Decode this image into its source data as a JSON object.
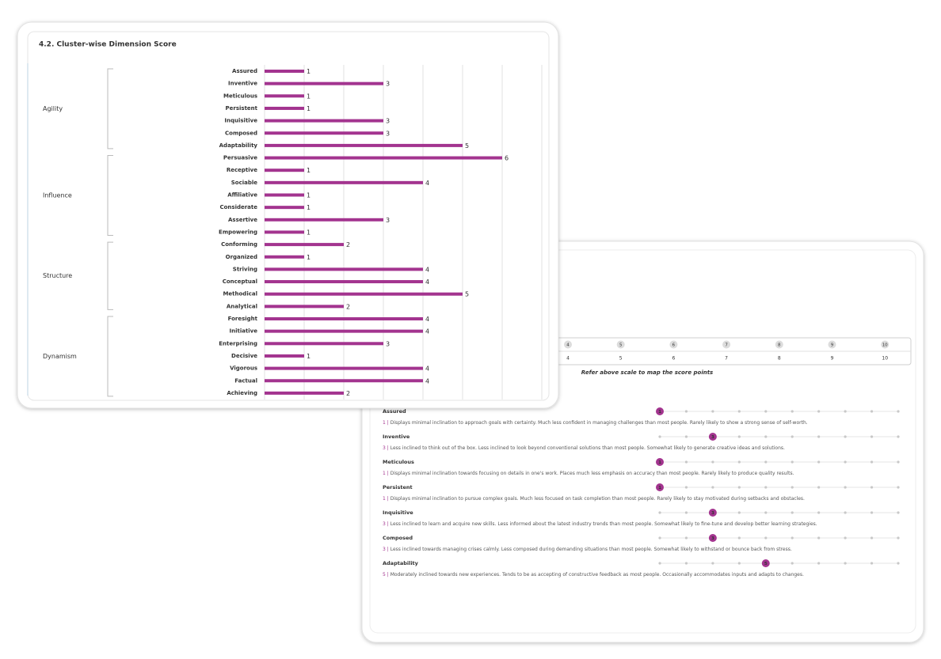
{
  "chart_data": {
    "type": "bar",
    "orientation": "horizontal",
    "title": "4.2. Cluster-wise Dimension Score",
    "color": "#a3348f",
    "xlim": [
      0,
      7
    ],
    "xticks": [
      0,
      1,
      2,
      3,
      4,
      5,
      6,
      7
    ],
    "tick_labels": false,
    "grid": true,
    "groups": [
      {
        "name": "Agility",
        "categories": [
          "Assured",
          "Inventive",
          "Meticulous",
          "Persistent",
          "Inquisitive",
          "Composed",
          "Adaptability"
        ],
        "values": [
          1,
          3,
          1,
          1,
          3,
          3,
          5
        ]
      },
      {
        "name": "Influence",
        "categories": [
          "Persuasive",
          "Receptive",
          "Sociable",
          "Affiliative",
          "Considerate",
          "Assertive",
          "Empowering"
        ],
        "values": [
          6,
          1,
          4,
          1,
          1,
          3,
          1
        ]
      },
      {
        "name": "Structure",
        "categories": [
          "Conforming",
          "Organized",
          "Striving",
          "Conceptual",
          "Methodical",
          "Analytical"
        ],
        "values": [
          2,
          1,
          4,
          4,
          5,
          2
        ]
      },
      {
        "name": "Dynamism",
        "categories": [
          "Foresight",
          "Initiative",
          "Enterprising",
          "Decisive",
          "Vigorous",
          "Factual",
          "Achieving"
        ],
        "values": [
          4,
          4,
          3,
          1,
          4,
          4,
          2
        ]
      }
    ]
  },
  "report": {
    "scale": [
      4,
      5,
      6,
      7,
      8,
      9,
      10
    ],
    "scale_note": "Refer above scale to map the score points",
    "score_range": [
      1,
      10
    ],
    "separator": "|",
    "items": [
      {
        "name": "Assured",
        "score": 1,
        "description": "Displays minimal inclination to approach goals with certainty. Much less confident in managing challenges than most people. Rarely likely to show a strong sense of self-worth."
      },
      {
        "name": "Inventive",
        "score": 3,
        "description": "Less inclined to think out of the box. Less inclined to look beyond conventional solutions than most people. Somewhat likely to generate creative ideas and solutions."
      },
      {
        "name": "Meticulous",
        "score": 1,
        "description": "Displays minimal inclination towards focusing on details in one's work. Places much less emphasis on accuracy than most people. Rarely likely to produce quality results."
      },
      {
        "name": "Persistent",
        "score": 1,
        "description": "Displays minimal inclination to pursue complex goals. Much less focused on task completion than most people. Rarely likely to stay motivated during setbacks and obstacles."
      },
      {
        "name": "Inquisitive",
        "score": 3,
        "description": "Less inclined to learn and acquire new skills. Less informed about the latest industry trends than most people. Somewhat likely to fine-tune and develop better learning strategies."
      },
      {
        "name": "Composed",
        "score": 3,
        "description": "Less inclined towards managing crises calmly. Less composed during demanding situations than most people. Somewhat likely to withstand or bounce back from stress."
      },
      {
        "name": "Adaptability",
        "score": 5,
        "description": "Moderately inclined towards new experiences. Tends to be as accepting of constructive feedback as most people. Occasionally accommodates inputs and adapts to changes."
      }
    ]
  }
}
